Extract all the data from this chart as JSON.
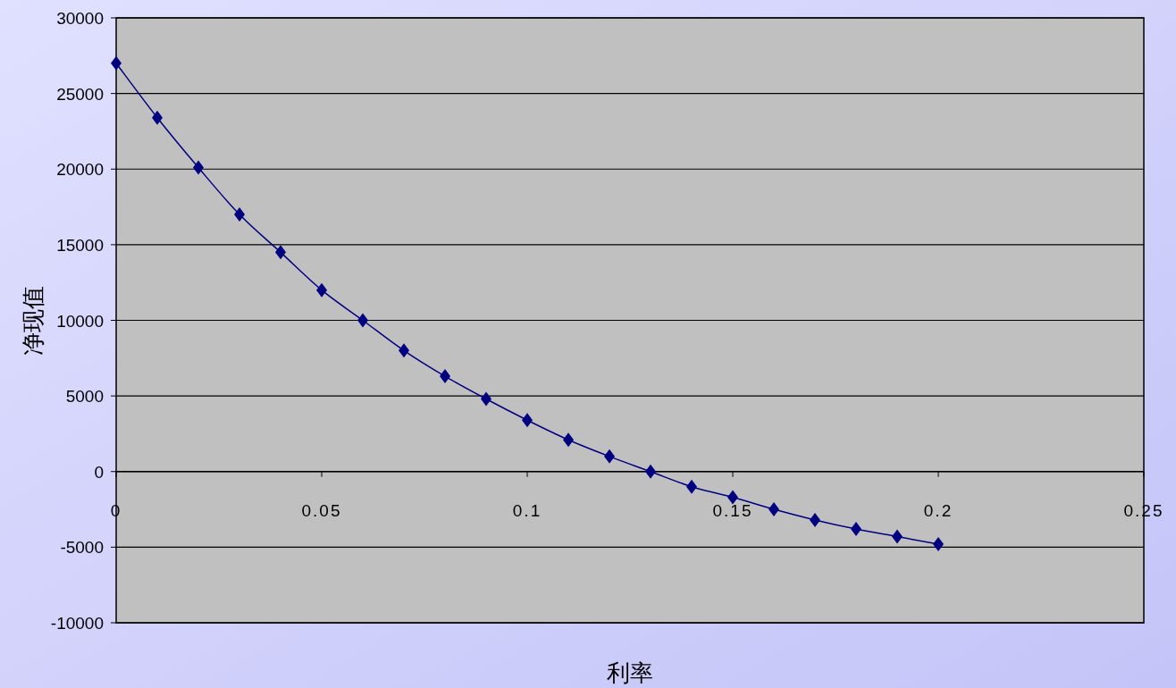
{
  "chart_data": {
    "type": "line",
    "xlabel": "利率",
    "ylabel": "净现值",
    "x": [
      0,
      0.01,
      0.02,
      0.03,
      0.04,
      0.05,
      0.06,
      0.07,
      0.08,
      0.09,
      0.1,
      0.11,
      0.12,
      0.13,
      0.14,
      0.15,
      0.16,
      0.17,
      0.18,
      0.19,
      0.2
    ],
    "series": [
      {
        "color": "#000080",
        "values": [
          27000,
          23400,
          20100,
          17000,
          14500,
          12000,
          10000,
          8000,
          6300,
          4800,
          3400,
          2100,
          1000,
          0,
          -1000,
          -1700,
          -2500,
          -3200,
          -3800,
          -4300,
          -4800
        ]
      }
    ],
    "xlim": [
      0,
      0.25
    ],
    "xticks": [
      0,
      0.05,
      0.1,
      0.15,
      0.2,
      0.25
    ],
    "ylim": [
      -10000,
      30000
    ],
    "yticks": [
      -10000,
      -5000,
      0,
      5000,
      10000,
      15000,
      20000,
      25000,
      30000
    ],
    "grid": "y",
    "marker": "diamond",
    "line_style": "solid"
  }
}
